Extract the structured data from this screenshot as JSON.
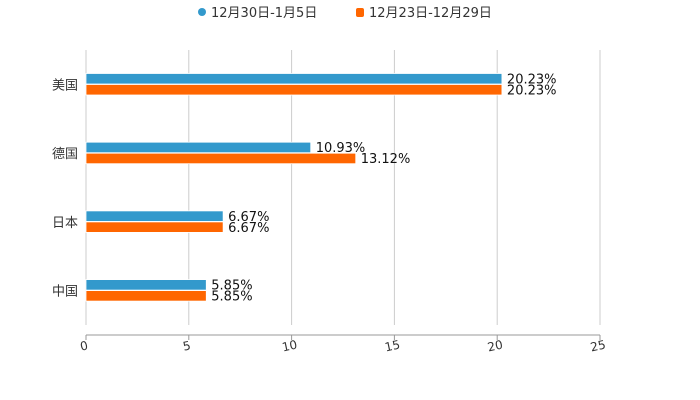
{
  "chart_data": {
    "type": "bar",
    "orientation": "horizontal",
    "categories": [
      "美国",
      "德国",
      "日本",
      "中国"
    ],
    "series": [
      {
        "name": "12月30日-1月5日",
        "color": "#3399cc",
        "values": [
          20.23,
          10.93,
          6.67,
          5.85
        ],
        "labels": [
          "20.23%",
          "10.93%",
          "6.67%",
          "5.85%"
        ]
      },
      {
        "name": "12月23日-12月29日",
        "color": "#ff6600",
        "values": [
          20.23,
          13.12,
          6.67,
          5.85
        ],
        "labels": [
          "20.23%",
          "13.12%",
          "6.67%",
          "5.85%"
        ]
      }
    ],
    "xlim": [
      0,
      25
    ],
    "xticks": [
      "0",
      "5",
      "10",
      "15",
      "20",
      "25"
    ],
    "grid": true,
    "legend": "top-center",
    "title": "",
    "xlabel": "",
    "ylabel": ""
  }
}
